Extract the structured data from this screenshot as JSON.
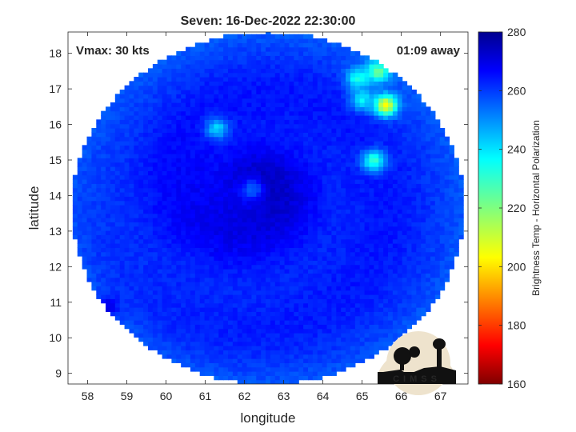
{
  "chart_data": {
    "type": "heatmap",
    "title": "Seven: 16-Dec-2022 22:30:00",
    "xlabel": "longitude",
    "ylabel": "latitude",
    "xlim": [
      57.5,
      67.7
    ],
    "ylim": [
      8.7,
      18.6
    ],
    "x_ticks": [
      58,
      59,
      60,
      61,
      62,
      63,
      64,
      65,
      66,
      67
    ],
    "y_ticks": [
      9,
      10,
      11,
      12,
      13,
      14,
      15,
      16,
      17,
      18
    ],
    "annotations": {
      "vmax": "Vmax: 30 kts",
      "time_away": "01:09 away"
    },
    "colorbar": {
      "label": "Brightness Temp - Horizontal Polarization",
      "range": [
        160,
        280
      ],
      "ticks": [
        160,
        180,
        200,
        220,
        240,
        260,
        280
      ],
      "colormap": "jet"
    },
    "swath": {
      "center": [
        62.6,
        13.65
      ],
      "radius_lon": 5.0,
      "radius_lat": 4.95
    },
    "storm_center": [
      62.2,
      14.2
    ],
    "features": [
      {
        "lon": 62.2,
        "lat": 14.2,
        "value": 254
      },
      {
        "lon": 65.6,
        "lat": 16.55,
        "value": 205
      },
      {
        "lon": 65.4,
        "lat": 17.5,
        "value": 222
      },
      {
        "lon": 64.9,
        "lat": 17.3,
        "value": 232
      },
      {
        "lon": 65.3,
        "lat": 15.0,
        "value": 228
      },
      {
        "lon": 65.0,
        "lat": 16.7,
        "value": 236
      },
      {
        "lon": 61.3,
        "lat": 15.9,
        "value": 240
      },
      {
        "lon": 58.5,
        "lat": 10.9,
        "value": 268
      }
    ],
    "base_value": 262
  },
  "logo": {
    "text": "CIMSS"
  }
}
